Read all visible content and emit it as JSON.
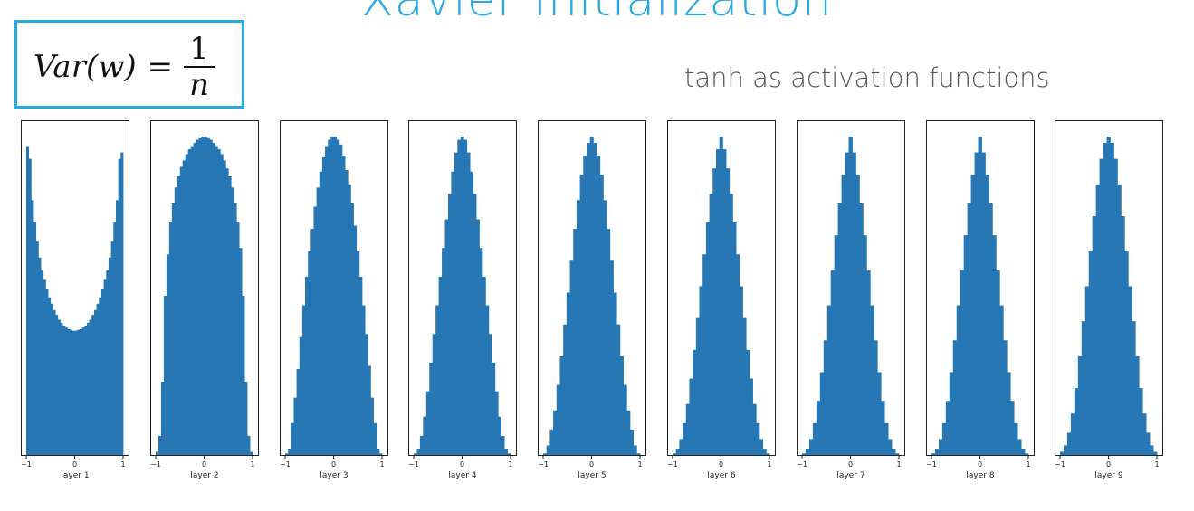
{
  "slide": {
    "title": "Xavier Initialization",
    "subtitle": "tanh as activation functions",
    "formula": {
      "lhs": "Var(w)",
      "equals": "=",
      "numerator": "1",
      "denominator": "n"
    }
  },
  "colors": {
    "bar": "#2677b4",
    "accent": "#29a9e0"
  },
  "chart_data": [
    {
      "type": "bar",
      "title": "",
      "xlabel": "layer 1",
      "ylabel": "",
      "xlim": [
        -1,
        1
      ],
      "xticks": [
        "−1",
        "0",
        "1"
      ],
      "bin_edges": [
        -1,
        1
      ],
      "values": [
        0.97,
        0.93,
        0.8,
        0.73,
        0.67,
        0.62,
        0.58,
        0.55,
        0.52,
        0.495,
        0.475,
        0.455,
        0.44,
        0.425,
        0.415,
        0.405,
        0.4,
        0.395,
        0.393,
        0.39,
        0.39,
        0.393,
        0.395,
        0.4,
        0.405,
        0.415,
        0.425,
        0.44,
        0.455,
        0.475,
        0.495,
        0.52,
        0.55,
        0.58,
        0.62,
        0.67,
        0.73,
        0.8,
        0.93,
        0.95
      ]
    },
    {
      "type": "bar",
      "title": "",
      "xlabel": "layer 2",
      "ylabel": "",
      "xlim": [
        -1,
        1
      ],
      "xticks": [
        "−1",
        "0",
        "1"
      ],
      "bin_edges": [
        -1,
        1
      ],
      "values": [
        0.01,
        0.06,
        0.23,
        0.5,
        0.63,
        0.73,
        0.79,
        0.84,
        0.875,
        0.905,
        0.925,
        0.945,
        0.96,
        0.97,
        0.98,
        0.99,
        0.995,
        1.0,
        1.0,
        0.995,
        0.99,
        0.98,
        0.97,
        0.96,
        0.945,
        0.925,
        0.9,
        0.875,
        0.84,
        0.79,
        0.73,
        0.65,
        0.5,
        0.23,
        0.06,
        0.01
      ]
    },
    {
      "type": "bar",
      "title": "",
      "xlabel": "layer 3",
      "ylabel": "",
      "xlim": [
        -1,
        1
      ],
      "xticks": [
        "−1",
        "0",
        "1"
      ],
      "bin_edges": [
        -1,
        1
      ],
      "values": [
        0.005,
        0.02,
        0.1,
        0.18,
        0.27,
        0.37,
        0.47,
        0.56,
        0.64,
        0.71,
        0.78,
        0.84,
        0.89,
        0.935,
        0.97,
        0.99,
        1.0,
        1.0,
        0.99,
        0.975,
        0.94,
        0.895,
        0.85,
        0.79,
        0.72,
        0.64,
        0.56,
        0.47,
        0.38,
        0.28,
        0.18,
        0.1,
        0.02,
        0.005
      ]
    },
    {
      "type": "bar",
      "title": "",
      "xlabel": "layer 4",
      "ylabel": "",
      "xlim": [
        -1,
        1
      ],
      "xticks": [
        "−1",
        "0",
        "1"
      ],
      "bin_edges": [
        -1,
        1
      ],
      "values": [
        0.005,
        0.02,
        0.06,
        0.12,
        0.2,
        0.29,
        0.38,
        0.47,
        0.56,
        0.65,
        0.74,
        0.82,
        0.89,
        0.95,
        0.99,
        1.0,
        0.99,
        0.95,
        0.89,
        0.82,
        0.74,
        0.65,
        0.56,
        0.47,
        0.38,
        0.29,
        0.2,
        0.12,
        0.06,
        0.02,
        0.005
      ]
    },
    {
      "type": "bar",
      "title": "",
      "xlabel": "layer 5",
      "ylabel": "",
      "xlim": [
        -1,
        1
      ],
      "xticks": [
        "−1",
        "0",
        "1"
      ],
      "bin_edges": [
        -1,
        1
      ],
      "values": [
        0.005,
        0.03,
        0.08,
        0.14,
        0.22,
        0.31,
        0.41,
        0.51,
        0.61,
        0.71,
        0.8,
        0.88,
        0.94,
        0.98,
        1.0,
        0.98,
        0.94,
        0.88,
        0.8,
        0.71,
        0.61,
        0.51,
        0.41,
        0.31,
        0.22,
        0.14,
        0.08,
        0.03,
        0.005
      ]
    },
    {
      "type": "bar",
      "title": "",
      "xlabel": "layer 6",
      "ylabel": "",
      "xlim": [
        -1,
        1
      ],
      "xticks": [
        "−1",
        "0",
        "1"
      ],
      "bin_edges": [
        -1,
        1
      ],
      "values": [
        0.005,
        0.02,
        0.05,
        0.1,
        0.16,
        0.24,
        0.33,
        0.43,
        0.53,
        0.63,
        0.73,
        0.82,
        0.9,
        0.96,
        1.0,
        0.96,
        0.9,
        0.82,
        0.73,
        0.63,
        0.53,
        0.43,
        0.33,
        0.24,
        0.16,
        0.1,
        0.05,
        0.02,
        0.005
      ]
    },
    {
      "type": "bar",
      "title": "",
      "xlabel": "layer 7",
      "ylabel": "",
      "xlim": [
        -1,
        1
      ],
      "xticks": [
        "−1",
        "0",
        "1"
      ],
      "bin_edges": [
        -1,
        1
      ],
      "values": [
        0.005,
        0.02,
        0.05,
        0.1,
        0.17,
        0.26,
        0.36,
        0.47,
        0.58,
        0.69,
        0.79,
        0.88,
        0.95,
        1.0,
        0.95,
        0.88,
        0.79,
        0.69,
        0.58,
        0.47,
        0.36,
        0.26,
        0.17,
        0.1,
        0.05,
        0.02,
        0.005
      ]
    },
    {
      "type": "bar",
      "title": "",
      "xlabel": "layer 8",
      "ylabel": "",
      "xlim": [
        -1,
        1
      ],
      "xticks": [
        "−1",
        "0",
        "1"
      ],
      "bin_edges": [
        -1,
        1
      ],
      "values": [
        0.005,
        0.02,
        0.05,
        0.1,
        0.17,
        0.26,
        0.36,
        0.47,
        0.58,
        0.69,
        0.79,
        0.88,
        0.95,
        1.0,
        0.95,
        0.88,
        0.79,
        0.69,
        0.58,
        0.47,
        0.36,
        0.26,
        0.17,
        0.1,
        0.05,
        0.02,
        0.005
      ]
    },
    {
      "type": "bar",
      "title": "",
      "xlabel": "layer 9",
      "ylabel": "",
      "xlim": [
        -1,
        1
      ],
      "xticks": [
        "−1",
        "0",
        "1"
      ],
      "bin_edges": [
        -1,
        1
      ],
      "values": [
        0.01,
        0.03,
        0.07,
        0.13,
        0.21,
        0.31,
        0.42,
        0.53,
        0.64,
        0.75,
        0.85,
        0.93,
        0.98,
        1.0,
        0.98,
        0.93,
        0.85,
        0.75,
        0.64,
        0.53,
        0.42,
        0.31,
        0.21,
        0.13,
        0.07,
        0.03,
        0.01
      ]
    }
  ]
}
